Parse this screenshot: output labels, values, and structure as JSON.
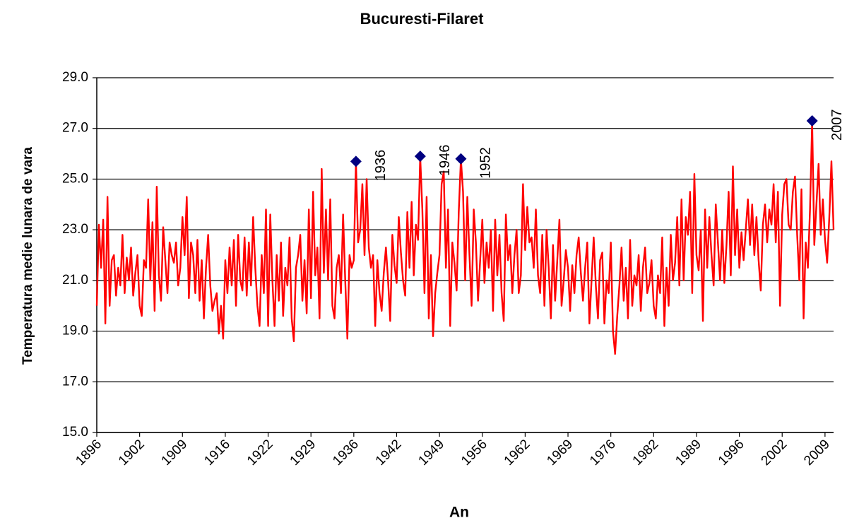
{
  "chart_data": {
    "type": "line",
    "title": "Bucuresti-Filaret",
    "x_label": "An",
    "y_label": "Temperatura medie lunara de vara",
    "color": "#ff0000",
    "grid": true,
    "ylim": [
      15,
      29
    ],
    "yticks": [
      {
        "value": 15,
        "label": "15.0"
      },
      {
        "value": 17,
        "label": "17.0"
      },
      {
        "value": 19,
        "label": "19.0"
      },
      {
        "value": 21,
        "label": "21.0"
      },
      {
        "value": 23,
        "label": "23.0"
      },
      {
        "value": 25,
        "label": "25.0"
      },
      {
        "value": 27,
        "label": "27.0"
      },
      {
        "value": 29,
        "label": "29.0"
      }
    ],
    "categories": [
      "1896",
      null,
      null,
      null,
      null,
      null,
      null,
      null,
      null,
      null,
      null,
      null,
      null,
      null,
      null,
      null,
      null,
      null,
      null,
      null,
      "1902",
      null,
      null,
      null,
      null,
      null,
      null,
      null,
      null,
      null,
      null,
      null,
      null,
      null,
      null,
      null,
      null,
      null,
      null,
      null,
      "1909",
      null,
      null,
      null,
      null,
      null,
      null,
      null,
      null,
      null,
      null,
      null,
      null,
      null,
      null,
      null,
      null,
      null,
      null,
      null,
      "1916",
      null,
      null,
      null,
      null,
      null,
      null,
      null,
      null,
      null,
      null,
      null,
      null,
      null,
      null,
      null,
      null,
      null,
      null,
      null,
      "1922",
      null,
      null,
      null,
      null,
      null,
      null,
      null,
      null,
      null,
      null,
      null,
      null,
      null,
      null,
      null,
      null,
      null,
      null,
      null,
      "1929",
      null,
      null,
      null,
      null,
      null,
      null,
      null,
      null,
      null,
      null,
      null,
      null,
      null,
      null,
      null,
      null,
      null,
      null,
      null,
      "1936",
      null,
      null,
      null,
      null,
      null,
      null,
      null,
      null,
      null,
      null,
      null,
      null,
      null,
      null,
      null,
      null,
      null,
      null,
      null,
      "1942",
      null,
      null,
      null,
      null,
      null,
      null,
      null,
      null,
      null,
      null,
      null,
      null,
      null,
      null,
      null,
      null,
      null,
      null,
      null,
      "1949",
      null,
      null,
      null,
      null,
      null,
      null,
      null,
      null,
      null,
      null,
      null,
      null,
      null,
      null,
      null,
      null,
      null,
      null,
      null,
      "1956",
      null,
      null,
      null,
      null,
      null,
      null,
      null,
      null,
      null,
      null,
      null,
      null,
      null,
      null,
      null,
      null,
      null,
      null,
      null,
      "1962",
      null,
      null,
      null,
      null,
      null,
      null,
      null,
      null,
      null,
      null,
      null,
      null,
      null,
      null,
      null,
      null,
      null,
      null,
      null,
      "1969",
      null,
      null,
      null,
      null,
      null,
      null,
      null,
      null,
      null,
      null,
      null,
      null,
      null,
      null,
      null,
      null,
      null,
      null,
      null,
      "1976",
      null,
      null,
      null,
      null,
      null,
      null,
      null,
      null,
      null,
      null,
      null,
      null,
      null,
      null,
      null,
      null,
      null,
      null,
      null,
      "1982",
      null,
      null,
      null,
      null,
      null,
      null,
      null,
      null,
      null,
      null,
      null,
      null,
      null,
      null,
      null,
      null,
      null,
      null,
      null,
      "1989",
      null,
      null,
      null,
      null,
      null,
      null,
      null,
      null,
      null,
      null,
      null,
      null,
      null,
      null,
      null,
      null,
      null,
      null,
      null,
      "1996",
      null,
      null,
      null,
      null,
      null,
      null,
      null,
      null,
      null,
      null,
      null,
      null,
      null,
      null,
      null,
      null,
      null,
      null,
      null,
      "2002",
      null,
      null,
      null,
      null,
      null,
      null,
      null,
      null,
      null,
      null,
      null,
      null,
      null,
      null,
      null,
      null,
      null,
      null,
      null,
      "2009",
      null,
      null,
      null,
      null
    ],
    "values": [
      20.0,
      23.2,
      21.5,
      23.4,
      19.3,
      24.3,
      20.0,
      21.8,
      22.0,
      20.4,
      21.5,
      20.8,
      22.8,
      20.5,
      21.9,
      21.0,
      22.3,
      20.4,
      21.3,
      22.0,
      20.0,
      19.6,
      21.8,
      21.5,
      24.2,
      21.0,
      23.3,
      19.8,
      24.7,
      21.2,
      20.2,
      23.1,
      21.8,
      20.5,
      22.5,
      22.0,
      21.7,
      22.5,
      20.8,
      21.5,
      23.5,
      22.0,
      24.3,
      20.3,
      22.5,
      22.0,
      20.5,
      22.6,
      20.2,
      21.8,
      19.5,
      21.5,
      22.8,
      20.8,
      19.8,
      20.2,
      20.5,
      18.9,
      20.0,
      18.7,
      21.8,
      20.5,
      22.3,
      20.8,
      22.6,
      20.0,
      22.8,
      21.0,
      20.6,
      22.7,
      20.4,
      22.5,
      20.8,
      23.5,
      21.5,
      20.0,
      19.2,
      22.0,
      20.5,
      23.8,
      19.2,
      23.6,
      21.0,
      19.2,
      22.0,
      20.2,
      22.5,
      19.6,
      21.5,
      20.8,
      22.7,
      19.5,
      18.6,
      21.5,
      22.0,
      22.8,
      20.2,
      21.8,
      19.7,
      23.8,
      20.3,
      24.5,
      21.2,
      22.3,
      19.5,
      25.4,
      21.3,
      23.8,
      21.0,
      24.2,
      20.0,
      19.5,
      21.5,
      22.0,
      20.5,
      23.6,
      21.0,
      18.7,
      22.0,
      21.5,
      21.8,
      25.7,
      22.5,
      23.0,
      24.8,
      22.0,
      25.0,
      22.3,
      21.5,
      22.0,
      19.2,
      21.8,
      20.5,
      19.8,
      21.3,
      22.3,
      21.0,
      19.4,
      22.8,
      21.6,
      20.9,
      23.5,
      22.1,
      21.0,
      20.4,
      23.7,
      21.5,
      24.1,
      21.2,
      23.2,
      22.6,
      25.9,
      23.8,
      20.5,
      24.3,
      19.5,
      22.0,
      18.8,
      20.5,
      21.3,
      22.0,
      24.8,
      25.3,
      21.5,
      23.8,
      19.2,
      22.5,
      21.7,
      20.6,
      23.7,
      25.8,
      24.5,
      21.0,
      24.3,
      22.0,
      20.0,
      23.8,
      22.5,
      20.2,
      21.8,
      23.4,
      20.9,
      22.5,
      21.5,
      23.0,
      19.8,
      23.4,
      21.2,
      22.8,
      20.5,
      19.4,
      23.6,
      21.8,
      22.4,
      20.5,
      22.0,
      23.0,
      20.5,
      21.2,
      24.8,
      22.2,
      23.9,
      22.5,
      22.7,
      21.5,
      23.8,
      21.2,
      20.5,
      22.8,
      20.0,
      23.0,
      21.5,
      19.5,
      22.4,
      20.2,
      21.8,
      23.4,
      20.0,
      21.0,
      22.2,
      21.5,
      19.8,
      21.6,
      20.5,
      22.0,
      22.7,
      21.3,
      20.2,
      21.5,
      22.5,
      19.3,
      21.0,
      22.7,
      20.8,
      19.5,
      21.8,
      22.1,
      19.3,
      21.0,
      20.5,
      22.5,
      19.0,
      18.1,
      19.6,
      20.8,
      22.3,
      20.2,
      21.5,
      19.5,
      22.6,
      20.0,
      21.2,
      20.8,
      22.0,
      19.8,
      21.5,
      22.3,
      20.5,
      20.9,
      21.8,
      20.0,
      19.5,
      21.2,
      20.5,
      22.7,
      19.2,
      21.5,
      20.0,
      22.8,
      21.0,
      21.7,
      23.5,
      20.8,
      24.2,
      21.0,
      23.5,
      22.8,
      24.5,
      20.5,
      25.2,
      22.0,
      21.4,
      23.0,
      19.4,
      23.8,
      21.5,
      23.5,
      22.0,
      20.8,
      24.0,
      22.5,
      21.0,
      23.0,
      20.9,
      22.4,
      24.5,
      21.2,
      25.5,
      22.0,
      23.8,
      21.5,
      22.9,
      21.8,
      23.0,
      24.2,
      22.4,
      24.0,
      22.0,
      23.5,
      21.8,
      20.6,
      23.2,
      24.0,
      22.5,
      23.8,
      23.2,
      24.8,
      22.5,
      24.5,
      20.0,
      23.6,
      24.8,
      25.0,
      23.2,
      23.0,
      24.5,
      25.1,
      22.8,
      21.0,
      24.6,
      19.5,
      22.5,
      21.5,
      23.8,
      27.3,
      22.4,
      24.0,
      25.6,
      22.8,
      24.2,
      22.6,
      21.7,
      23.5,
      25.7,
      23.0
    ],
    "markers": {
      "color": "#000080",
      "values": [
        null,
        null,
        null,
        null,
        null,
        null,
        null,
        null,
        null,
        null,
        null,
        null,
        null,
        null,
        null,
        null,
        null,
        null,
        null,
        null,
        null,
        null,
        null,
        null,
        null,
        null,
        null,
        null,
        null,
        null,
        null,
        null,
        null,
        null,
        null,
        null,
        null,
        null,
        null,
        null,
        null,
        null,
        null,
        null,
        null,
        null,
        null,
        null,
        null,
        null,
        null,
        null,
        null,
        null,
        null,
        null,
        null,
        null,
        null,
        null,
        null,
        null,
        null,
        null,
        null,
        null,
        null,
        null,
        null,
        null,
        null,
        null,
        null,
        null,
        null,
        null,
        null,
        null,
        null,
        null,
        null,
        null,
        null,
        null,
        null,
        null,
        null,
        null,
        null,
        null,
        null,
        null,
        null,
        null,
        null,
        null,
        null,
        null,
        null,
        null,
        null,
        null,
        null,
        null,
        null,
        null,
        null,
        null,
        null,
        null,
        null,
        null,
        null,
        null,
        null,
        null,
        null,
        null,
        null,
        null,
        null,
        25.7,
        null,
        null,
        null,
        null,
        null,
        null,
        null,
        null,
        null,
        null,
        null,
        null,
        null,
        null,
        null,
        null,
        null,
        null,
        null,
        null,
        null,
        null,
        null,
        null,
        null,
        null,
        null,
        null,
        null,
        25.9,
        null,
        null,
        null,
        null,
        null,
        null,
        null,
        null,
        null,
        null,
        null,
        null,
        null,
        null,
        null,
        null,
        null,
        null,
        25.8,
        null,
        null,
        null,
        null,
        null,
        null,
        null,
        null,
        null,
        null,
        null,
        null,
        null,
        null,
        null,
        null,
        null,
        null,
        null,
        null,
        null,
        null,
        null,
        null,
        null,
        null,
        null,
        null,
        null,
        null,
        null,
        null,
        null,
        null,
        null,
        null,
        null,
        null,
        null,
        null,
        null,
        null,
        null,
        null,
        null,
        null,
        null,
        null,
        null,
        null,
        null,
        null,
        null,
        null,
        null,
        null,
        null,
        null,
        null,
        null,
        null,
        null,
        null,
        null,
        null,
        null,
        null,
        null,
        null,
        null,
        null,
        null,
        null,
        null,
        null,
        null,
        null,
        null,
        null,
        null,
        null,
        null,
        null,
        null,
        null,
        null,
        null,
        null,
        null,
        null,
        null,
        null,
        null,
        null,
        null,
        null,
        null,
        null,
        null,
        null,
        null,
        null,
        null,
        null,
        null,
        null,
        null,
        null,
        null,
        null,
        null,
        null,
        null,
        null,
        null,
        null,
        null,
        null,
        null,
        null,
        null,
        null,
        null,
        null,
        null,
        null,
        null,
        null,
        null,
        null,
        null,
        null,
        null,
        null,
        null,
        null,
        null,
        null,
        null,
        null,
        null,
        null,
        null,
        null,
        null,
        null,
        null,
        null,
        null,
        null,
        null,
        null,
        null,
        null,
        null,
        null,
        null,
        null,
        null,
        null,
        null,
        null,
        null,
        27.3,
        null,
        null,
        null,
        null,
        null,
        null,
        null,
        null,
        null,
        null
      ]
    },
    "annotations": [
      "1936",
      "1946",
      "1952",
      "2007"
    ]
  }
}
